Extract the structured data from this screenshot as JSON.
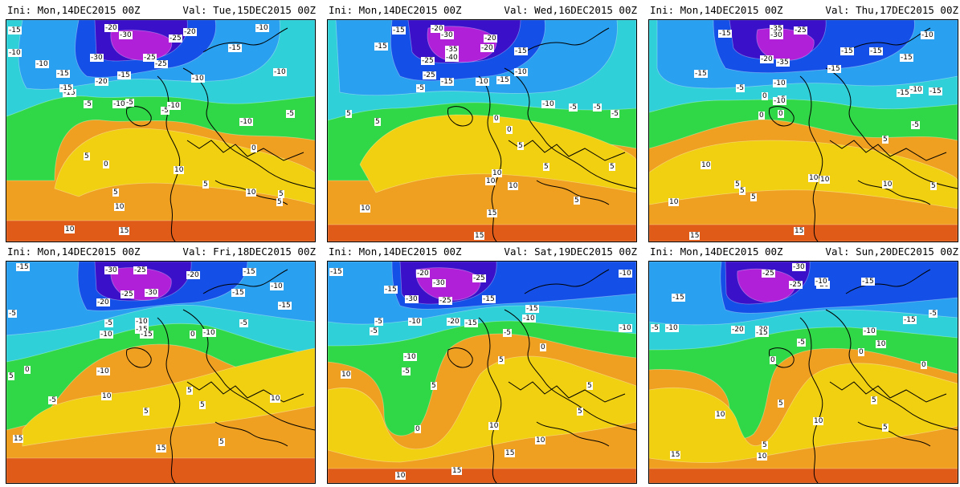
{
  "panels": [
    {
      "id": "p1",
      "ini_label": "Ini:",
      "ini_value": "Mon,14DEC2015 00Z",
      "val_label": "Val:",
      "val_value": "Tue,15DEC2015 00Z",
      "labels": [
        "-15",
        "-20",
        "-30",
        "-25",
        "-20",
        "-15",
        "-10",
        "-10",
        "-10",
        "-15",
        "-30",
        "-25",
        "-25",
        "-10",
        "-15",
        "-20",
        "-15",
        "-15",
        "-10",
        "-5",
        "-10",
        "-5",
        "-5",
        "-10",
        "-10",
        "-5",
        "0",
        "5",
        "0",
        "10",
        "5",
        "10",
        "5",
        "5",
        "10",
        "5",
        "15",
        "10"
      ]
    },
    {
      "id": "p2",
      "ini_label": "Ini:",
      "ini_value": "Mon,14DEC2015 00Z",
      "val_label": "Val:",
      "val_value": "Wed,16DEC2015 00Z",
      "labels": [
        "-15",
        "-20",
        "-30",
        "-20",
        "-15",
        "-35",
        "-40",
        "-25",
        "-20",
        "-15",
        "-15",
        "-10",
        "-5",
        "-25",
        "-15",
        "-10",
        "-5",
        "-5",
        "-10",
        "-5",
        "0",
        "5",
        "0",
        "5",
        "5",
        "10",
        "5",
        "10",
        "10",
        "15",
        "5",
        "5",
        "10",
        "15"
      ]
    },
    {
      "id": "p3",
      "ini_label": "Ini:",
      "ini_value": "Mon,14DEC2015 00Z",
      "val_label": "Val:",
      "val_value": "Thu,17DEC2015 00Z",
      "labels": [
        "-15",
        "-35",
        "-30",
        "-25",
        "-15",
        "-15",
        "-10",
        "-20",
        "-35",
        "-15",
        "-15",
        "-15",
        "-10",
        "-15",
        "-10",
        "-5",
        "0",
        "-5",
        "-15",
        "-10",
        "0",
        "0",
        "-5",
        "5",
        "10",
        "5",
        "5",
        "10",
        "10",
        "10",
        "5",
        "15",
        "15",
        "10",
        "5"
      ]
    },
    {
      "id": "p4",
      "ini_label": "Ini:",
      "ini_value": "Mon,14DEC2015 00Z",
      "val_label": "Val:",
      "val_value": "Fri,18DEC2015 00Z",
      "labels": [
        "-15",
        "-30",
        "-25",
        "-20",
        "-15",
        "-10",
        "-20",
        "-25",
        "-30",
        "-15",
        "-15",
        "-5",
        "-10",
        "-15",
        "-10",
        "-5",
        "-10",
        "-15",
        "-5",
        "0",
        "-10",
        "-5",
        "5",
        "10",
        "5",
        "0",
        "5",
        "10",
        "5",
        "15",
        "15",
        "5"
      ]
    },
    {
      "id": "p5",
      "ini_label": "Ini:",
      "ini_value": "Mon,14DEC2015 00Z",
      "val_label": "Val:",
      "val_value": "Sat,19DEC2015 00Z",
      "labels": [
        "-15",
        "-30",
        "-25",
        "-20",
        "-10",
        "-15",
        "-30",
        "-25",
        "-15",
        "-10",
        "-5",
        "-10",
        "-20",
        "-15",
        "-5",
        "-10",
        "-15",
        "-5",
        "0",
        "5",
        "-10",
        "-5",
        "10",
        "5",
        "0",
        "5",
        "10",
        "15",
        "10",
        "5",
        "15",
        "10"
      ]
    },
    {
      "id": "p6",
      "ini_label": "Ini:",
      "ini_value": "Mon,14DEC2015 00Z",
      "val_label": "Val:",
      "val_value": "Sun,20DEC2015 00Z",
      "labels": [
        "-25",
        "-30",
        "-25",
        "-20",
        "-20",
        "-15",
        "-10",
        "-15",
        "-5",
        "-10",
        "-15",
        "-20",
        "-15",
        "-10",
        "-5",
        "0",
        "-5",
        "0",
        "5",
        "10",
        "0",
        "5",
        "10",
        "10",
        "5",
        "15",
        "10",
        "5"
      ]
    }
  ]
}
